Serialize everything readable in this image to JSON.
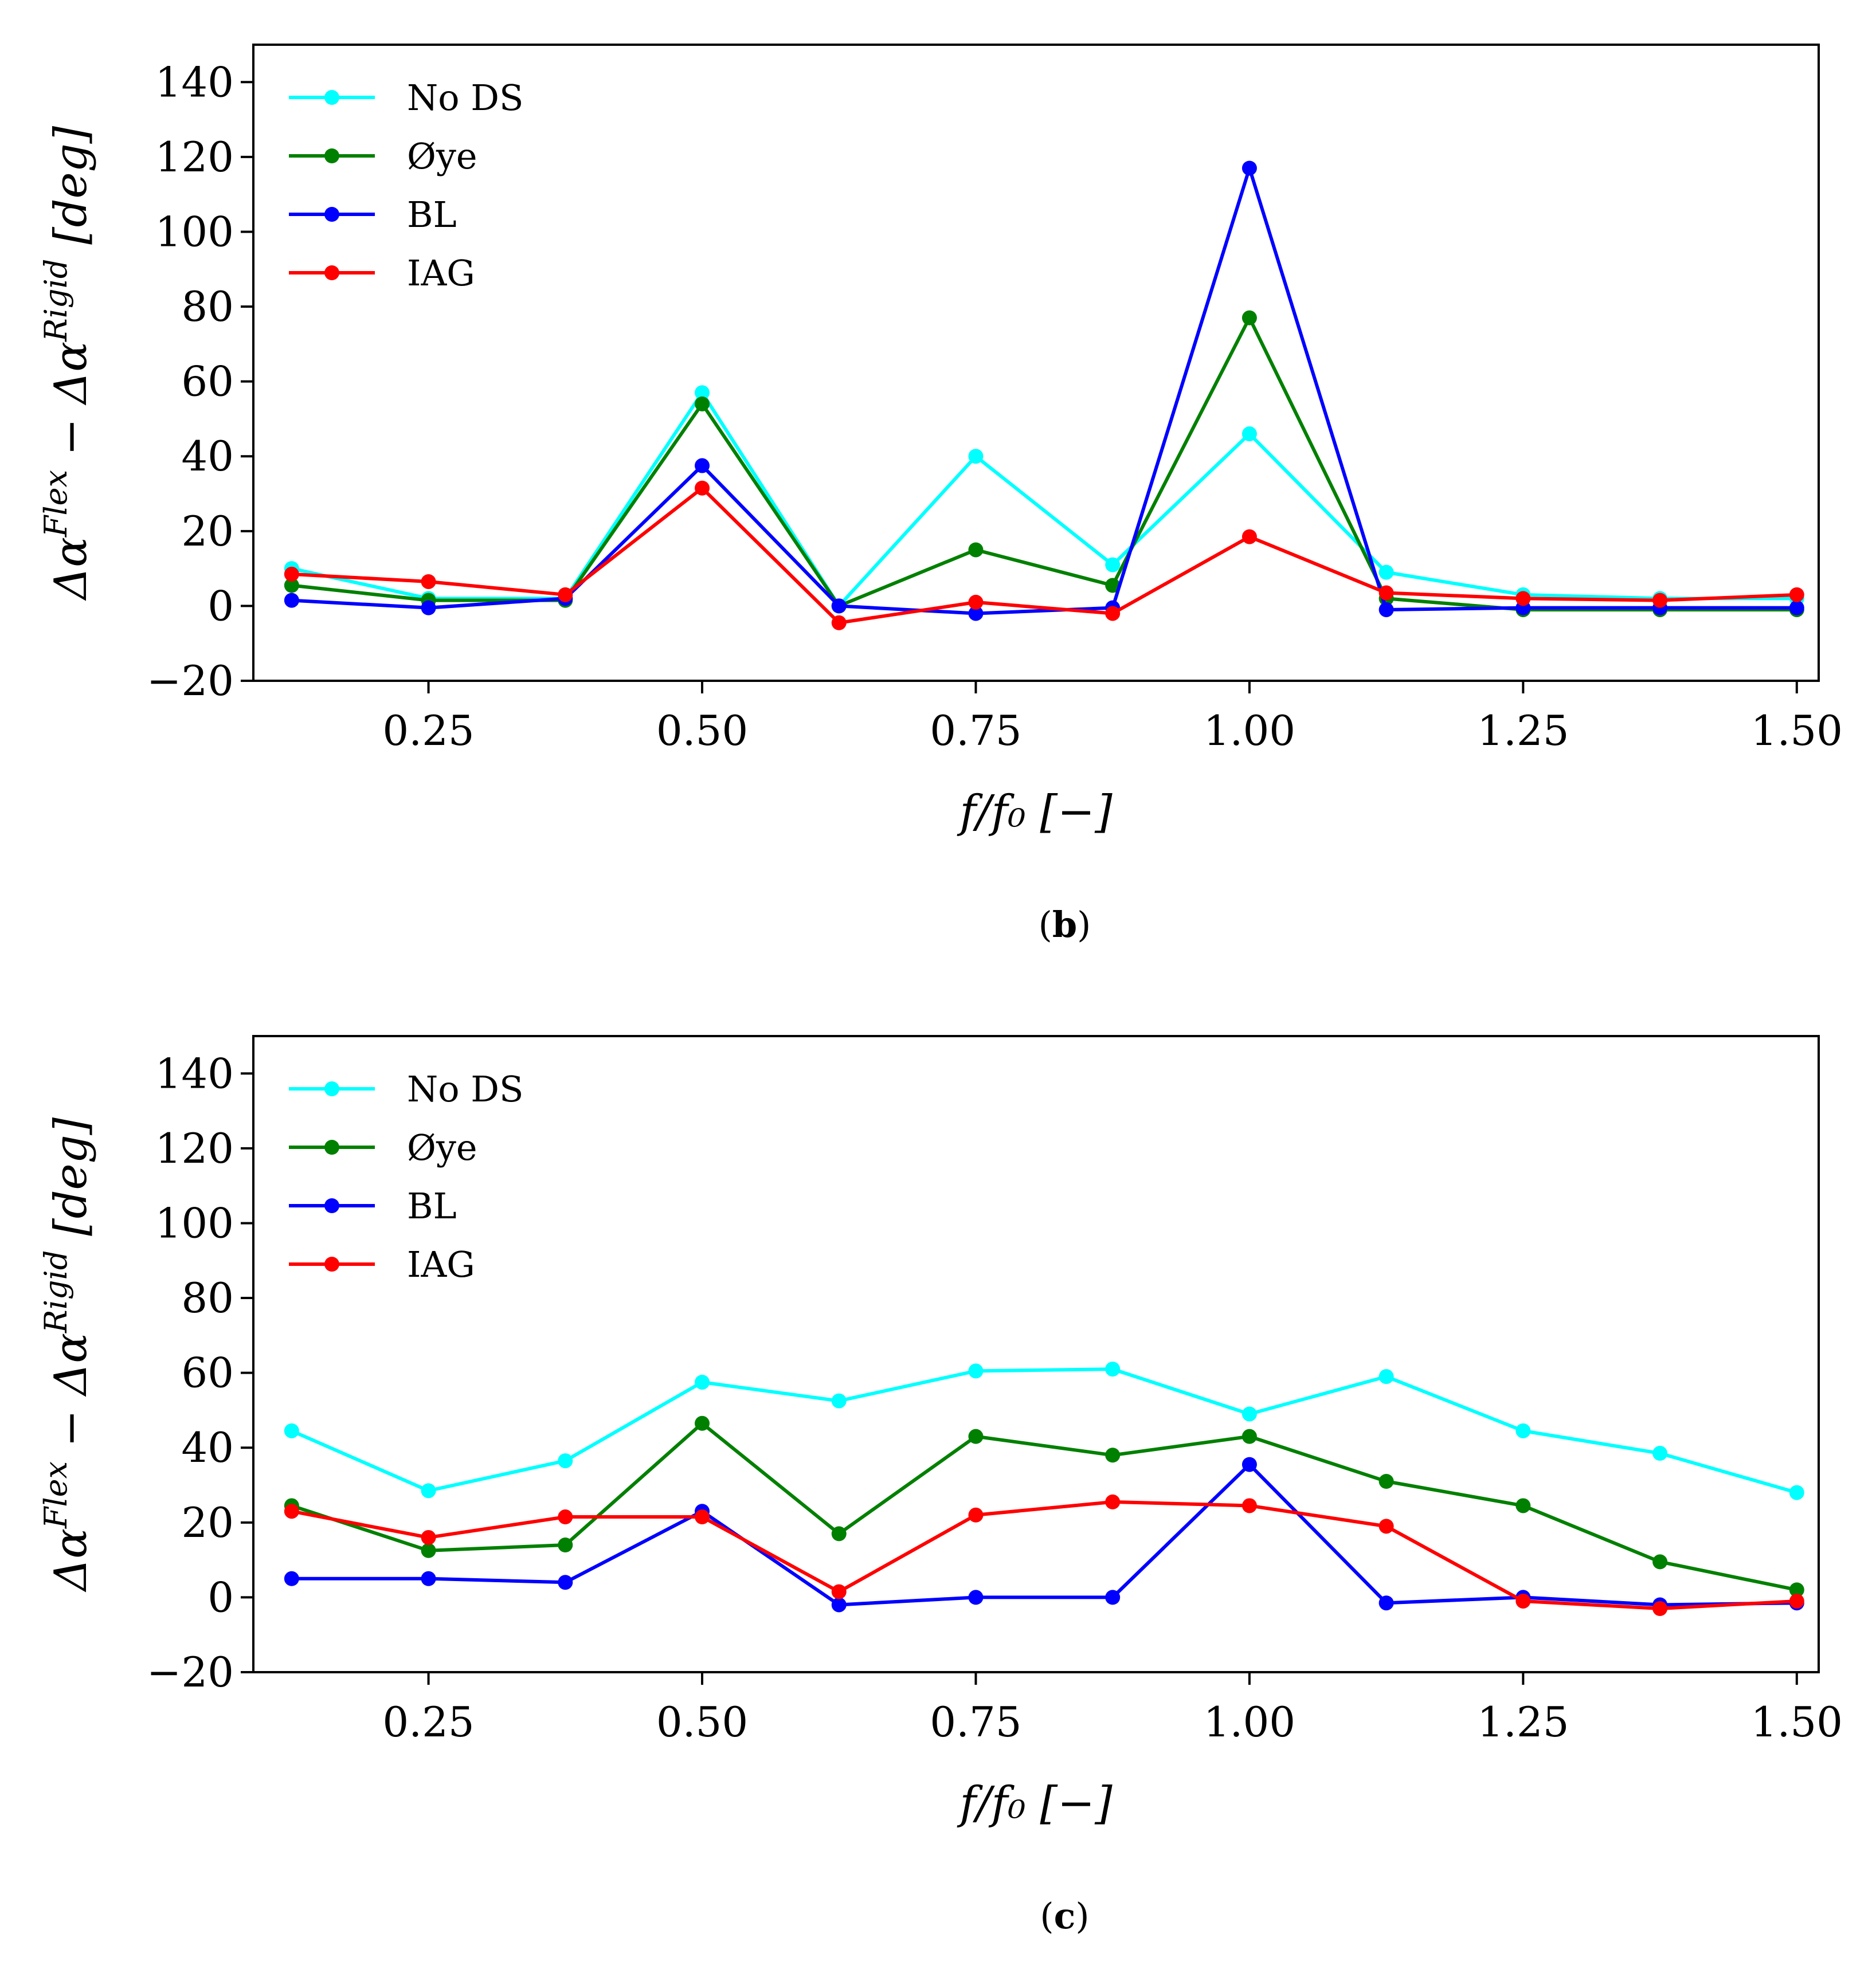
{
  "chart_data": [
    {
      "type": "line",
      "panel": "b",
      "caption_bold": "b",
      "x": [
        0.125,
        0.25,
        0.375,
        0.5,
        0.625,
        0.75,
        0.875,
        1.0,
        1.125,
        1.25,
        1.375,
        1.5
      ],
      "series": [
        {
          "name": "No DS",
          "color": "#00ffff",
          "values": [
            10,
            2,
            2,
            57,
            0,
            40,
            11,
            46,
            9,
            3,
            2,
            2
          ]
        },
        {
          "name": "Øye",
          "color": "#008000",
          "values": [
            5.5,
            1.5,
            1.5,
            54,
            0,
            15,
            5.5,
            77,
            2,
            -1,
            -1,
            -1
          ]
        },
        {
          "name": "BL",
          "color": "#0000ff",
          "values": [
            1.5,
            -0.5,
            2,
            37.5,
            0,
            -2,
            -0.5,
            117,
            -1,
            -0.5,
            -0.5,
            -0.5
          ]
        },
        {
          "name": "IAG",
          "color": "#ff0000",
          "values": [
            8.5,
            6.5,
            3,
            31.5,
            -4.5,
            1,
            -2,
            18.5,
            3.5,
            2,
            1.5,
            3
          ]
        }
      ],
      "xticks": [
        "0.25",
        "0.50",
        "0.75",
        "1.00",
        "1.25",
        "1.50"
      ],
      "xtick_values": [
        0.25,
        0.5,
        0.75,
        1.0,
        1.25,
        1.5
      ],
      "yticks": [
        "−20",
        "0",
        "20",
        "40",
        "60",
        "80",
        "100",
        "120",
        "140"
      ],
      "ytick_values": [
        -20,
        0,
        20,
        40,
        60,
        80,
        100,
        120,
        140
      ],
      "xlim": [
        0.09,
        1.52
      ],
      "ylim": [
        -20,
        150
      ],
      "xlabel": "f/f₀ [−]",
      "ylabel": "Δα^Flex − Δα^Rigid [deg]",
      "legend_loc": "upper left"
    },
    {
      "type": "line",
      "panel": "c",
      "caption_bold": "c",
      "x": [
        0.125,
        0.25,
        0.375,
        0.5,
        0.625,
        0.75,
        0.875,
        1.0,
        1.125,
        1.25,
        1.375,
        1.5
      ],
      "series": [
        {
          "name": "No DS",
          "color": "#00ffff",
          "values": [
            44.5,
            28.5,
            36.5,
            57.5,
            52.5,
            60.5,
            61,
            49,
            59,
            44.5,
            38.5,
            28
          ]
        },
        {
          "name": "Øye",
          "color": "#008000",
          "values": [
            24.5,
            12.5,
            14,
            46.5,
            17,
            43,
            38,
            43,
            31,
            24.5,
            9.5,
            2
          ]
        },
        {
          "name": "BL",
          "color": "#0000ff",
          "values": [
            5,
            5,
            4,
            23,
            -2,
            0,
            0,
            35.5,
            -1.5,
            0,
            -2,
            -1.5
          ]
        },
        {
          "name": "IAG",
          "color": "#ff0000",
          "values": [
            23,
            16,
            21.5,
            21.5,
            1.5,
            22,
            25.5,
            24.5,
            19,
            -1,
            -3,
            -1
          ]
        }
      ],
      "xticks": [
        "0.25",
        "0.50",
        "0.75",
        "1.00",
        "1.25",
        "1.50"
      ],
      "xtick_values": [
        0.25,
        0.5,
        0.75,
        1.0,
        1.25,
        1.5
      ],
      "yticks": [
        "−20",
        "0",
        "20",
        "40",
        "60",
        "80",
        "100",
        "120",
        "140"
      ],
      "ytick_values": [
        -20,
        0,
        20,
        40,
        60,
        80,
        100,
        120,
        140
      ],
      "xlim": [
        0.09,
        1.52
      ],
      "ylim": [
        -20,
        150
      ],
      "xlabel": "f/f₀ [−]",
      "ylabel": "Δα^Flex − Δα^Rigid [deg]",
      "legend_loc": "upper left"
    }
  ]
}
